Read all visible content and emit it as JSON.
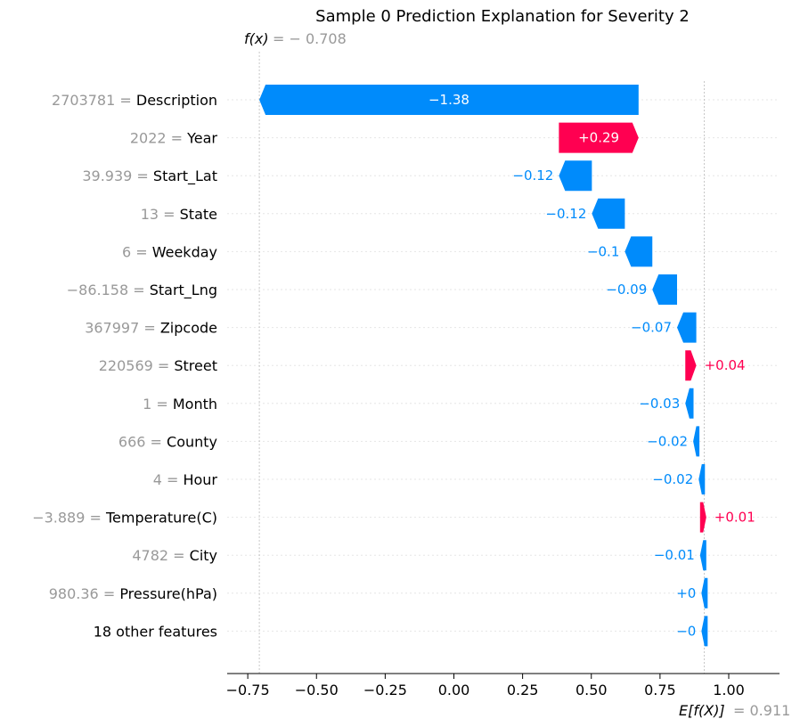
{
  "chart_data": {
    "type": "waterfall",
    "title": "Sample 0 Prediction Explanation for Severity 2",
    "fx": {
      "label": "f(x)",
      "value_text": "= − 0.708",
      "value": -0.708
    },
    "base": {
      "label": "E[f(X)]",
      "value_text": "= 0.911",
      "value": 0.911
    },
    "xlim": [
      -0.82,
      1.19
    ],
    "xticks": [
      {
        "value": -0.75,
        "label": "−0.75"
      },
      {
        "value": -0.5,
        "label": "−0.50"
      },
      {
        "value": -0.25,
        "label": "−0.25"
      },
      {
        "value": 0.0,
        "label": "0.00"
      },
      {
        "value": 0.25,
        "label": "0.25"
      },
      {
        "value": 0.5,
        "label": "0.50"
      },
      {
        "value": 0.75,
        "label": "0.75"
      },
      {
        "value": 1.0,
        "label": "1.00"
      }
    ],
    "colors": {
      "positive": "#ff0051",
      "negative": "#008bfb",
      "value_text": "#999999"
    },
    "features": [
      {
        "value": "2703781",
        "name": "Description",
        "shap": -1.38,
        "label": "−1.38",
        "end": -0.708
      },
      {
        "value": "2022",
        "name": "Year",
        "shap": 0.29,
        "label": "+0.29",
        "end": 0.672
      },
      {
        "value": "39.939",
        "name": "Start_Lat",
        "shap": -0.12,
        "label": "−0.12",
        "end": 0.382
      },
      {
        "value": "13",
        "name": "State",
        "shap": -0.12,
        "label": "−0.12",
        "end": 0.502
      },
      {
        "value": "6",
        "name": "Weekday",
        "shap": -0.1,
        "label": "−0.1",
        "end": 0.622
      },
      {
        "value": "−86.158",
        "name": "Start_Lng",
        "shap": -0.09,
        "label": "−0.09",
        "end": 0.722
      },
      {
        "value": "367997",
        "name": "Zipcode",
        "shap": -0.07,
        "label": "−0.07",
        "end": 0.812
      },
      {
        "value": "220569",
        "name": "Street",
        "shap": 0.04,
        "label": "+0.04",
        "end": 0.882
      },
      {
        "value": "1",
        "name": "Month",
        "shap": -0.03,
        "label": "−0.03",
        "end": 0.842
      },
      {
        "value": "666",
        "name": "County",
        "shap": -0.02,
        "label": "−0.02",
        "end": 0.872
      },
      {
        "value": "4",
        "name": "Hour",
        "shap": -0.02,
        "label": "−0.02",
        "end": 0.892
      },
      {
        "value": "−3.889",
        "name": "Temperature(C)",
        "shap": 0.01,
        "label": "+0.01",
        "end": 0.912
      },
      {
        "value": "4782",
        "name": "City",
        "shap": -0.01,
        "label": "−0.01",
        "end": 0.902
      },
      {
        "value": "980.36",
        "name": "Pressure(hPa)",
        "shap": 0.0,
        "label": "+0",
        "end": 0.912
      },
      {
        "value": "",
        "name": "18 other features",
        "shap": 0.0,
        "label": "−0",
        "end": 0.912
      }
    ]
  }
}
